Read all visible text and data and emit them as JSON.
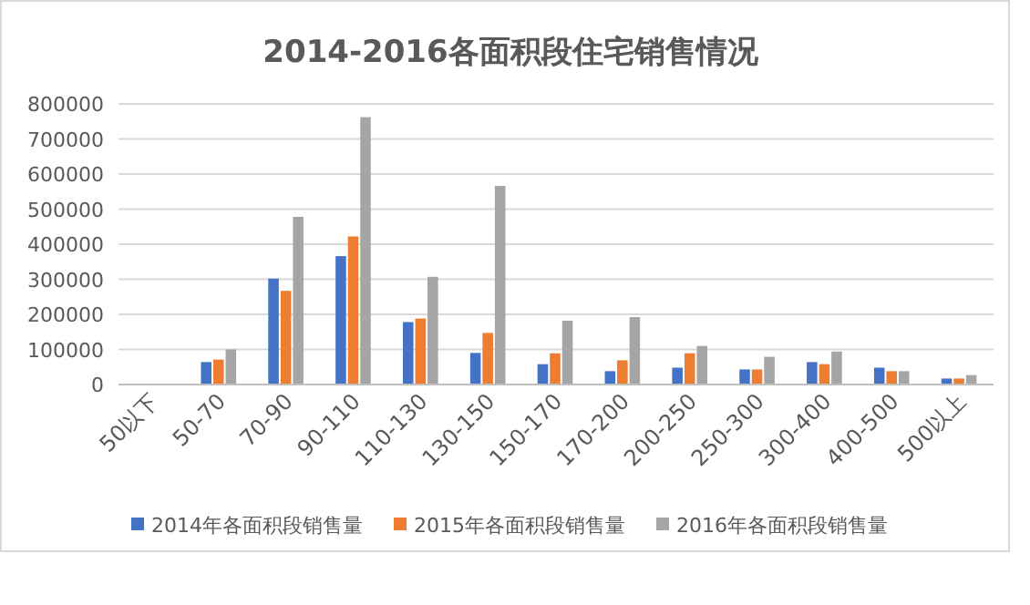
{
  "chart_data": {
    "type": "bar",
    "title": "2014-2016各面积段住宅销售情况",
    "categories": [
      "50以下",
      "50-70",
      "70-90",
      "90-110",
      "110-130",
      "130-150",
      "150-170",
      "170-200",
      "200-250",
      "250-300",
      "300-400",
      "400-500",
      "500以上"
    ],
    "series": [
      {
        "name": "2014年各面积段销售量",
        "color": "#4472c4",
        "values": [
          1000,
          64000,
          302000,
          366000,
          178000,
          90000,
          58000,
          38000,
          48000,
          43000,
          64000,
          48000,
          17000
        ]
      },
      {
        "name": "2015年各面积段销售量",
        "color": "#ed7d31",
        "values": [
          1000,
          71000,
          267000,
          422000,
          188000,
          147000,
          89000,
          69000,
          89000,
          43000,
          58000,
          38000,
          17000
        ]
      },
      {
        "name": "2016年各面积段销售量",
        "color": "#a5a5a5",
        "values": [
          2000,
          100000,
          478000,
          762000,
          307000,
          566000,
          182000,
          192000,
          110000,
          79000,
          94000,
          38000,
          27000
        ]
      }
    ],
    "ylim": [
      0,
      800000
    ],
    "yticks": [
      0,
      100000,
      200000,
      300000,
      400000,
      500000,
      600000,
      700000,
      800000
    ],
    "grid": "y",
    "legend": "bottom"
  }
}
